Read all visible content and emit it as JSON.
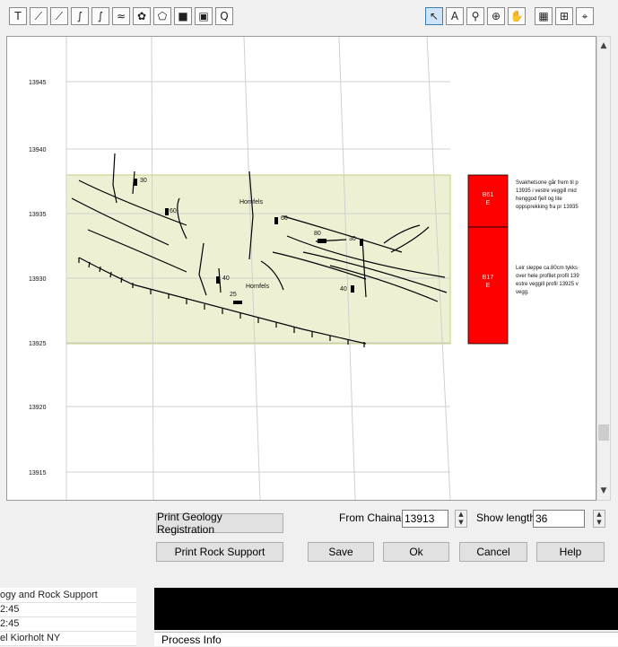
{
  "toolbar": {
    "left_tools": [
      {
        "icon": "text-tool-icon",
        "glyph": "T"
      },
      {
        "icon": "dip-strike-icon",
        "glyph": "⟋"
      },
      {
        "icon": "dip-arrow-icon",
        "glyph": "⟋"
      },
      {
        "icon": "curve-line-icon",
        "glyph": "∫"
      },
      {
        "icon": "freehand-line-icon",
        "glyph": "∫"
      },
      {
        "icon": "fault-line-icon",
        "glyph": "≈"
      },
      {
        "icon": "polygon-fill-icon",
        "glyph": "✿"
      },
      {
        "icon": "shape-icon",
        "glyph": "⬠"
      },
      {
        "icon": "filled-rect-icon",
        "glyph": "■"
      },
      {
        "icon": "box-text-icon",
        "glyph": "▣"
      },
      {
        "icon": "box-q-icon",
        "glyph": "Q"
      }
    ],
    "right_tools": [
      {
        "icon": "pointer-icon",
        "glyph": "↖",
        "selected": true
      },
      {
        "icon": "text-size-icon",
        "glyph": "A"
      },
      {
        "icon": "zoom-icon",
        "glyph": "⚲"
      },
      {
        "icon": "zoom-extent-icon",
        "glyph": "⊕"
      },
      {
        "icon": "pan-hand-icon",
        "glyph": "✋"
      },
      {
        "icon": "grid-icon",
        "glyph": "▦"
      },
      {
        "icon": "insert-table-icon",
        "glyph": "⊞"
      },
      {
        "icon": "coordinate-icon",
        "glyph": "⌖"
      }
    ]
  },
  "chart": {
    "chainages": [
      "13945",
      "13940",
      "13935",
      "13930",
      "13925",
      "13920",
      "13915"
    ],
    "labels": {
      "d30a": "30",
      "d60a": "60",
      "hornfels1": "Hornfels",
      "d60b": "60",
      "d80": "80",
      "d30b": "30",
      "d40a": "40",
      "hornfels2": "Hornfels",
      "d25": "25",
      "d40b": "40"
    },
    "red_cells": [
      {
        "code": "B61",
        "class": "E"
      },
      {
        "code": "B17",
        "class": "E"
      }
    ],
    "notes": [
      [
        "Svakhetsone går frem til p",
        "13935 i vestre veggill mid",
        "henggod fjell og lite",
        "oppsprekking fra pr 13935"
      ],
      [
        "Leir sleppe ca.80cm tykks",
        "over hele profilet profil 139",
        "estre veggill profil 13925 v",
        "vegg."
      ]
    ],
    "colors": {
      "zone": "#eef0d4",
      "zone_border": "#c8cc7a",
      "red": "#ff0000"
    }
  },
  "controls": {
    "print_geology": "Print Geology Registration",
    "print_rock": "Print Rock Support",
    "from_label": "From Chainag",
    "from_value": "13913",
    "show_label": "Show length:",
    "show_value": "36",
    "save": "Save",
    "ok": "Ok",
    "cancel": "Cancel",
    "help": "Help"
  },
  "left_panel": {
    "rows": [
      "ogy and Rock Support",
      "2:45",
      "2:45",
      "el Kiorholt NY"
    ]
  },
  "process_info": "Process Info"
}
